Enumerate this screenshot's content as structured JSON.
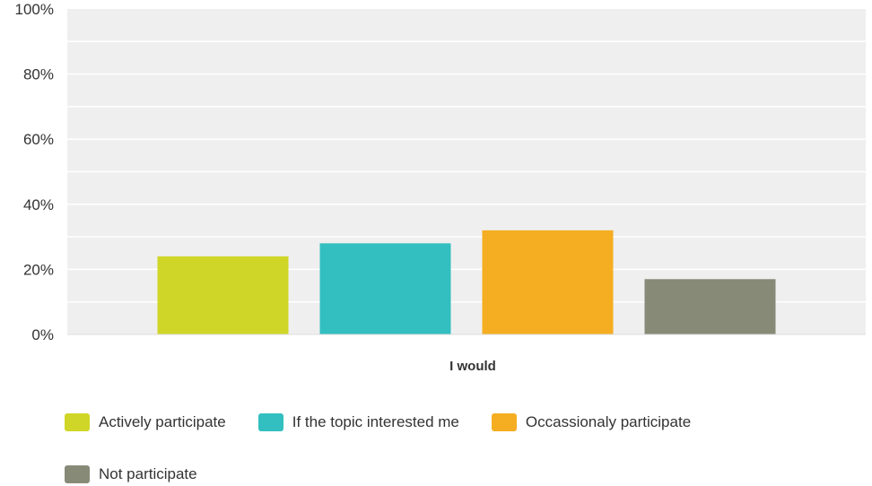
{
  "chart_data": {
    "type": "bar",
    "xlabel": "I would",
    "categories": [
      "I would"
    ],
    "ylim": [
      0,
      100
    ],
    "yticks": [
      "0%",
      "20%",
      "40%",
      "60%",
      "80%",
      "100%"
    ],
    "grid": true,
    "legend_position": "bottom",
    "series": [
      {
        "name": "Actively participate",
        "values": [
          24
        ],
        "color": "#cfd628"
      },
      {
        "name": "If the topic interested me",
        "values": [
          28
        ],
        "color": "#33bfc0"
      },
      {
        "name": "Occassionaly participate",
        "values": [
          32
        ],
        "color": "#f5ae22"
      },
      {
        "name": "Not participate",
        "values": [
          17
        ],
        "color": "#888a78"
      }
    ]
  }
}
